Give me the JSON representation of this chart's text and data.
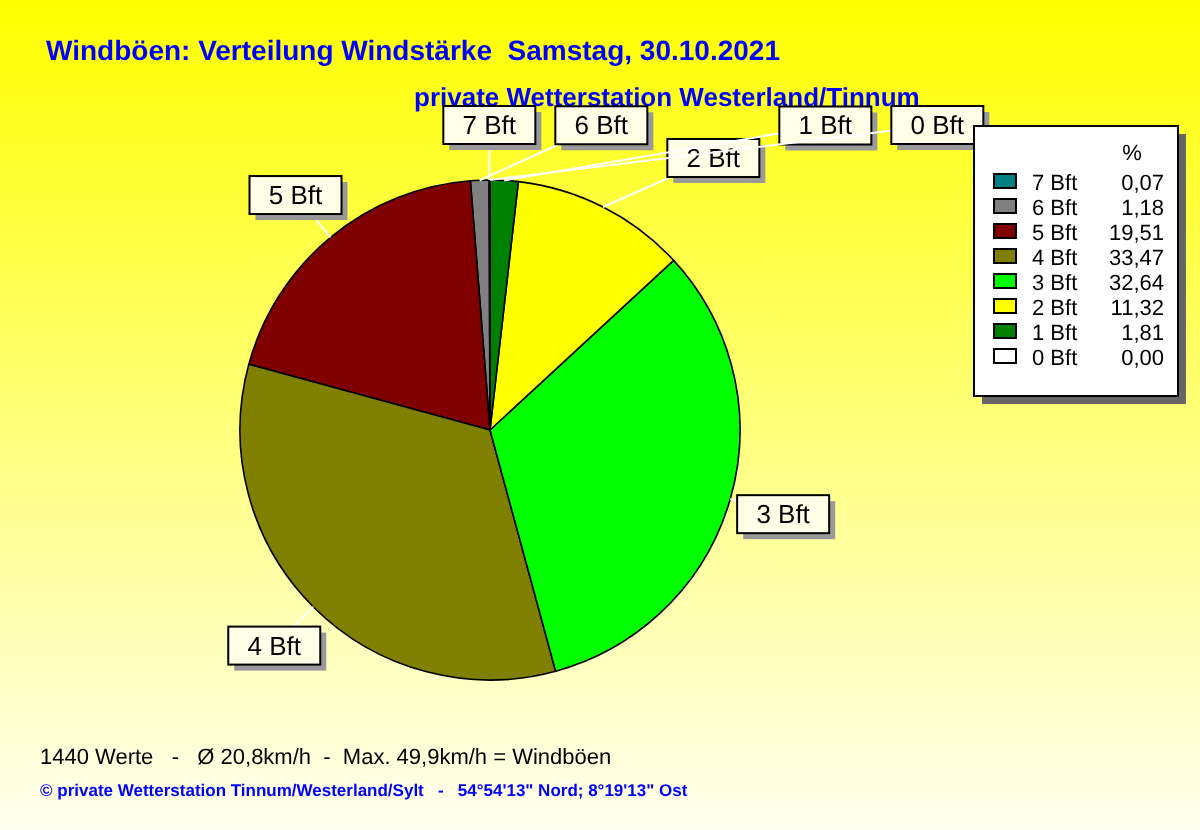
{
  "chart_data": {
    "type": "pie",
    "title": "Windböen: Verteilung Windstärke  Samstag, 30.10.2021",
    "subtitle": "private Wetterstation Westerland/Tinnum",
    "categories": [
      "7 Bft",
      "6 Bft",
      "5 Bft",
      "4 Bft",
      "3 Bft",
      "2 Bft",
      "1 Bft",
      "0 Bft"
    ],
    "values": [
      0.07,
      1.18,
      19.51,
      33.47,
      32.64,
      11.32,
      1.81,
      0.0
    ],
    "value_labels": [
      "0,07",
      "1,18",
      "19,51",
      "33,47",
      "32,64",
      "11,32",
      "1,81",
      "0,00"
    ],
    "colors": [
      "#008080",
      "#808080",
      "#800000",
      "#808000",
      "#00ff00",
      "#ffff00",
      "#008000",
      "#ffffff"
    ],
    "legend_title": "%",
    "legend": "top right",
    "annotations": [
      "1440 Werte   -   Ø 20,8km/h  -  Max. 49,9km/h = Windböen",
      "© private Wetterstation Tinnum/Westerland/Sylt   -   54°54'13\" Nord; 8°19'13\" Ost"
    ]
  }
}
